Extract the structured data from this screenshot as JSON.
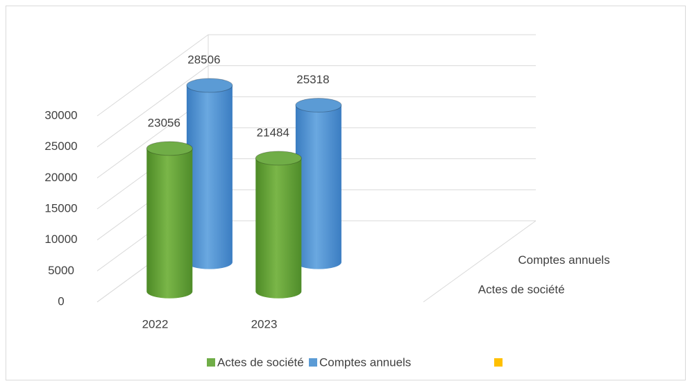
{
  "chart_data": {
    "type": "bar3d",
    "categories": [
      "2022",
      "2023"
    ],
    "series": [
      {
        "name": "Actes de société",
        "color": "#70ad47",
        "values": [
          23056,
          21484
        ]
      },
      {
        "name": "Comptes annuels",
        "color": "#5b9bd5",
        "values": [
          28506,
          25318
        ]
      }
    ],
    "ylim": [
      0,
      30000
    ],
    "yticks": [
      0,
      5000,
      10000,
      15000,
      20000,
      25000,
      30000
    ],
    "grid": true
  }
}
